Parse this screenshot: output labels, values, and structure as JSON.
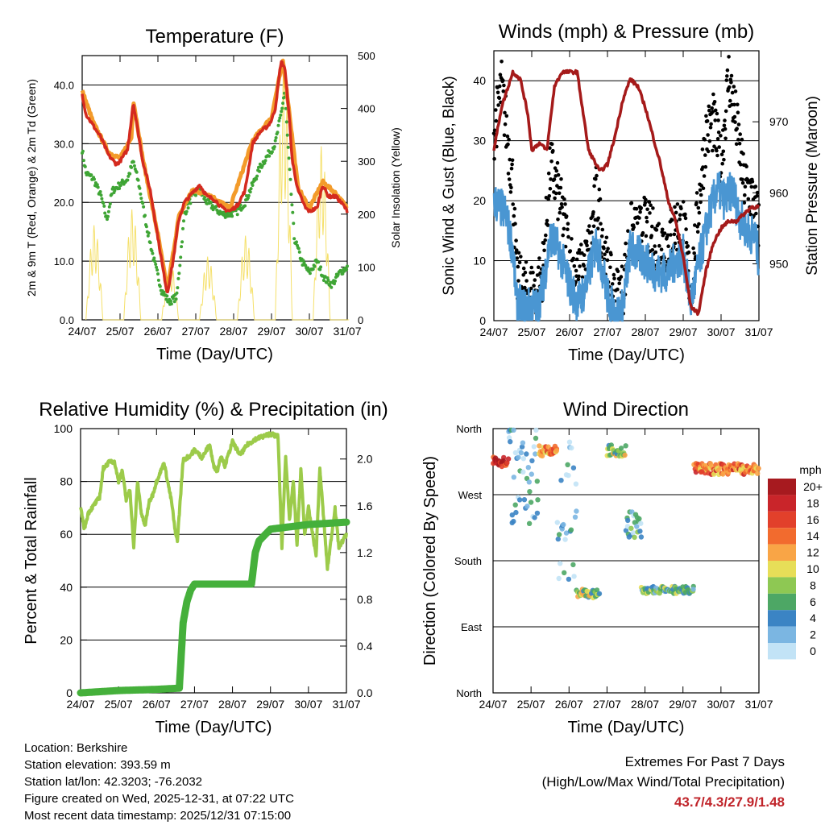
{
  "days": [
    "24/07",
    "25/07",
    "26/07",
    "27/07",
    "28/07",
    "29/07",
    "30/07",
    "31/07"
  ],
  "colors": {
    "red": "#d42a1f",
    "orange": "#f39b2a",
    "green": "#3fa535",
    "yellow": "#f5e06a",
    "blue": "#4a96d2",
    "black": "#000000",
    "maroon": "#a51a1a",
    "rh": "#9ccb4a",
    "rain": "#45b03b"
  },
  "info": {
    "location": "Location: Berkshire",
    "elevation": "Station elevation: 393.59 m",
    "latlon": "Station lat/lon: 42.3203; -76.2032",
    "created": "Figure created on Wed, 2025-12-31, at 07:22 UTC",
    "recent": "Most recent data timestamp: 2025/12/31 07:15:00"
  },
  "extremes": {
    "title": "Extremes For Past 7 Days",
    "subtitle": "(High/Low/Max Wind/Total Precipitation)",
    "values": "43.7/4.3/27.9/1.48"
  },
  "chart_data": [
    {
      "id": "temperature",
      "type": "line",
      "title": "Temperature (F)",
      "xlabel": "Time (Day/UTC)",
      "ylabel": "2m & 9m T (Red, Orange) & 2m Td (Green)",
      "y2label": "Solar Insolation (Yellow)",
      "xlim": [
        0,
        7
      ],
      "ylim": [
        0,
        45
      ],
      "y2lim": [
        0,
        500
      ],
      "yticks": [
        "0.0",
        "10.0",
        "20.0",
        "30.0",
        "40.0"
      ],
      "y2ticks": [
        "0",
        "100",
        "200",
        "300",
        "400",
        "500"
      ],
      "series": [
        {
          "name": "2m T",
          "color": "red",
          "x": [
            0,
            0.1,
            0.3,
            0.5,
            0.7,
            0.9,
            1.0,
            1.2,
            1.35,
            1.45,
            1.6,
            1.8,
            2.0,
            2.15,
            2.25,
            2.4,
            2.55,
            2.7,
            2.9,
            3.1,
            3.3,
            3.5,
            3.7,
            3.9,
            4.1,
            4.3,
            4.5,
            4.7,
            4.9,
            5.0,
            5.1,
            5.25,
            5.35,
            5.45,
            5.55,
            5.7,
            5.9,
            6.0,
            6.2,
            6.35,
            6.5,
            6.7,
            6.9,
            7.0
          ],
          "y": [
            38.5,
            35,
            33,
            31,
            28,
            26.5,
            27,
            29,
            37,
            33,
            27,
            22,
            14,
            8,
            4.5,
            10,
            17,
            20,
            21.5,
            23,
            21,
            20.5,
            19,
            18.5,
            19.5,
            22,
            30,
            32,
            33,
            34,
            36,
            44,
            43,
            36,
            27,
            22,
            19,
            18.5,
            19,
            23,
            21,
            21,
            19.5,
            18.5
          ]
        },
        {
          "name": "9m T",
          "color": "orange",
          "x": [
            0,
            0.3,
            0.7,
            1.0,
            1.3,
            1.35,
            1.6,
            2.0,
            2.25,
            2.55,
            2.9,
            3.3,
            3.9,
            4.5,
            5.0,
            5.3,
            5.45,
            5.7,
            6.0,
            6.35,
            6.7,
            7.0
          ],
          "y": [
            39,
            33.5,
            28.5,
            27.5,
            31,
            37.5,
            27.5,
            14.5,
            5,
            17.5,
            22,
            21.5,
            19,
            30.5,
            34.5,
            44.2,
            36.5,
            22.5,
            19,
            23.5,
            21.5,
            19
          ]
        },
        {
          "name": "2m Td",
          "color": "green",
          "x": [
            0,
            0.1,
            0.3,
            0.5,
            0.65,
            0.8,
            1.0,
            1.2,
            1.35,
            1.5,
            1.7,
            1.9,
            2.1,
            2.3,
            2.5,
            2.7,
            2.9,
            3.1,
            3.3,
            3.5,
            3.7,
            3.9,
            4.1,
            4.3,
            4.5,
            4.7,
            4.9,
            5.1,
            5.25,
            5.35,
            5.45,
            5.6,
            5.8,
            6.0,
            6.2,
            6.4,
            6.6,
            6.8,
            7.0
          ],
          "y": [
            29,
            25,
            24,
            21,
            17,
            22,
            23,
            24,
            27,
            23,
            16,
            10,
            5,
            3,
            4,
            18,
            21,
            22,
            20,
            19,
            18,
            18,
            18.5,
            20,
            23,
            26,
            28,
            30,
            35,
            39,
            28,
            14,
            10,
            8,
            10,
            7,
            6,
            8,
            9
          ]
        },
        {
          "name": "Solar Insolation",
          "color": "yellow",
          "axis": "y2",
          "days": 7,
          "peaks": [
            180,
            210,
            110,
            120,
            160,
            470,
            330
          ]
        }
      ]
    },
    {
      "id": "winds",
      "type": "scatter",
      "title": "Winds (mph) & Pressure (mb)",
      "xlabel": "Time (Day/UTC)",
      "ylabel": "Sonic Wind & Gust (Blue, Black)",
      "y2label": "Station Pressure (Maroon)",
      "xlim": [
        0,
        7
      ],
      "ylim": [
        0,
        45
      ],
      "y2lim": [
        942,
        980
      ],
      "yticks": [
        "0",
        "10",
        "20",
        "30",
        "40"
      ],
      "y2ticks": [
        "950",
        "960",
        "970"
      ],
      "series": [
        {
          "name": "Sonic Wind",
          "color": "blue",
          "x": [
            0,
            0.3,
            0.5,
            0.6,
            0.8,
            1.0,
            1.15,
            1.3,
            1.5,
            1.7,
            1.9,
            2.0,
            2.2,
            2.4,
            2.55,
            2.7,
            2.9,
            3.0,
            3.2,
            3.4,
            3.6,
            3.8,
            4.0,
            4.3,
            4.6,
            4.8,
            5.0,
            5.2,
            5.5,
            5.7,
            5.9,
            6.1,
            6.3,
            6.5,
            6.7,
            6.9,
            7.0
          ],
          "y": [
            20,
            18,
            12,
            3,
            2,
            2.5,
            2,
            6,
            14,
            12,
            8,
            6,
            3,
            5,
            9,
            13,
            8,
            4,
            1,
            2,
            12,
            11,
            10,
            8,
            8,
            10,
            11,
            3,
            12,
            18,
            22,
            20,
            22,
            17,
            15,
            14,
            10
          ]
        },
        {
          "name": "Gust",
          "color": "black",
          "x": [
            0,
            0.2,
            0.5,
            0.6,
            0.8,
            1.0,
            1.15,
            1.3,
            1.5,
            1.7,
            1.9,
            2.0,
            2.2,
            2.4,
            2.55,
            2.7,
            2.9,
            3.0,
            3.2,
            3.4,
            3.6,
            3.8,
            4.0,
            4.3,
            4.6,
            4.8,
            5.0,
            5.2,
            5.4,
            5.6,
            5.8,
            6.0,
            6.2,
            6.4,
            6.6,
            6.8,
            7.0
          ],
          "y": [
            30,
            38,
            22,
            6,
            4,
            4,
            4,
            8,
            25,
            20,
            14,
            10,
            6,
            8,
            12,
            20,
            12,
            7,
            3,
            4,
            14,
            13,
            15,
            12,
            12,
            15,
            15,
            4,
            18,
            30,
            32,
            25,
            40,
            32,
            22,
            20,
            15
          ]
        },
        {
          "name": "Pressure",
          "color": "maroon",
          "axis": "y2",
          "x": [
            0,
            0.2,
            0.5,
            0.7,
            0.9,
            1.0,
            1.2,
            1.4,
            1.6,
            1.8,
            2.0,
            2.2,
            2.5,
            2.8,
            3.0,
            3.2,
            3.4,
            3.6,
            3.8,
            4.0,
            4.2,
            4.4,
            4.6,
            4.8,
            5.0,
            5.2,
            5.4,
            5.6,
            5.8,
            6.0,
            6.2,
            6.4,
            6.6,
            6.8,
            7.0
          ],
          "y": [
            966,
            972,
            977,
            976,
            971,
            966,
            967,
            966,
            975,
            977,
            977,
            977,
            966,
            963,
            964,
            968,
            973,
            976,
            975,
            972,
            968,
            964,
            959,
            956,
            951,
            944,
            943,
            949,
            953,
            955,
            956,
            956,
            957,
            958,
            958
          ]
        }
      ]
    },
    {
      "id": "humidity",
      "type": "line",
      "title": "Relative Humidity (%) & Precipitation (in)",
      "xlabel": "Time (Day/UTC)",
      "ylabel": "Percent & Total Rainfall",
      "xlim": [
        0,
        7
      ],
      "ylim": [
        0,
        100
      ],
      "y2lim": [
        0,
        2.26
      ],
      "yticks": [
        "0",
        "20",
        "40",
        "60",
        "80",
        "100"
      ],
      "y2ticks": [
        "0.0",
        "0.4",
        "0.8",
        "1.2",
        "1.6",
        "2.0"
      ],
      "series": [
        {
          "name": "Relative Humidity",
          "color": "rh",
          "x": [
            0,
            0.1,
            0.2,
            0.4,
            0.5,
            0.6,
            0.8,
            0.9,
            1.0,
            1.1,
            1.2,
            1.3,
            1.4,
            1.5,
            1.6,
            1.7,
            1.8,
            1.9,
            2.0,
            2.2,
            2.4,
            2.5,
            2.55,
            2.7,
            2.9,
            3.0,
            3.2,
            3.4,
            3.5,
            3.6,
            3.7,
            3.8,
            4.0,
            4.2,
            4.4,
            4.6,
            4.8,
            5.0,
            5.2,
            5.3,
            5.4,
            5.5,
            5.6,
            5.7,
            5.8,
            5.9,
            6.0,
            6.2,
            6.3,
            6.5,
            6.7,
            6.8,
            7.0
          ],
          "y": [
            70,
            62,
            68,
            72,
            74,
            85,
            88,
            87,
            80,
            84,
            73,
            77,
            55,
            80,
            68,
            63,
            72,
            75,
            80,
            87,
            72,
            60,
            58,
            88,
            90,
            92,
            89,
            94,
            86,
            84,
            90,
            86,
            95,
            90,
            94,
            96,
            97,
            98,
            97,
            55,
            90,
            65,
            80,
            56,
            85,
            60,
            70,
            52,
            85,
            47,
            70,
            55,
            60
          ]
        },
        {
          "name": "Total Rainfall",
          "color": "rain",
          "axis": "y2",
          "x": [
            0,
            1.0,
            2.0,
            2.6,
            2.7,
            2.8,
            2.9,
            3.0,
            3.5,
            4.0,
            4.5,
            4.6,
            4.7,
            5.0,
            5.5,
            6.0,
            6.5,
            7.0
          ],
          "y": [
            0,
            0.02,
            0.03,
            0.04,
            0.6,
            0.78,
            0.88,
            0.93,
            0.93,
            0.93,
            0.93,
            1.2,
            1.3,
            1.4,
            1.42,
            1.44,
            1.45,
            1.46
          ]
        }
      ]
    },
    {
      "id": "direction",
      "type": "scatter",
      "title": "Wind Direction",
      "xlabel": "Time (Day/UTC)",
      "ylabel": "Direction (Colored By Speed)",
      "xlim": [
        0,
        7
      ],
      "yticks": [
        "North",
        "East",
        "South",
        "West",
        "North"
      ],
      "colorbar": {
        "title": "mph",
        "labels": [
          "20+",
          "18",
          "16",
          "14",
          "12",
          "10",
          "8",
          "6",
          "4",
          "2",
          "0"
        ],
        "colors": [
          "#a71a1f",
          "#c9252a",
          "#e2402b",
          "#f26b2e",
          "#f9a546",
          "#e7de58",
          "#8ec853",
          "#4da765",
          "#3b84c4",
          "#7bb6e2",
          "#c2e3f6"
        ]
      },
      "segments": [
        {
          "x": [
            0,
            0.4
          ],
          "dir": 315,
          "spread": 15,
          "spd": 18
        },
        {
          "x": [
            0.4,
            1.2
          ],
          "dir": 300,
          "spread": 90,
          "spd": 3
        },
        {
          "x": [
            1.2,
            1.7
          ],
          "dir": 330,
          "spread": 15,
          "spd": 12
        },
        {
          "x": [
            1.7,
            2.2
          ],
          "dir": 250,
          "spread": 120,
          "spd": 3
        },
        {
          "x": [
            2.2,
            2.8
          ],
          "dir": 135,
          "spread": 12,
          "spd": 8
        },
        {
          "x": [
            3.0,
            3.5
          ],
          "dir": 330,
          "spread": 15,
          "spd": 8
        },
        {
          "x": [
            3.5,
            3.9
          ],
          "dir": 230,
          "spread": 40,
          "spd": 4
        },
        {
          "x": [
            3.9,
            5.3
          ],
          "dir": 140,
          "spread": 10,
          "spd": 6
        },
        {
          "x": [
            5.3,
            7.0
          ],
          "dir": 305,
          "spread": 15,
          "spd": 14
        }
      ]
    }
  ]
}
